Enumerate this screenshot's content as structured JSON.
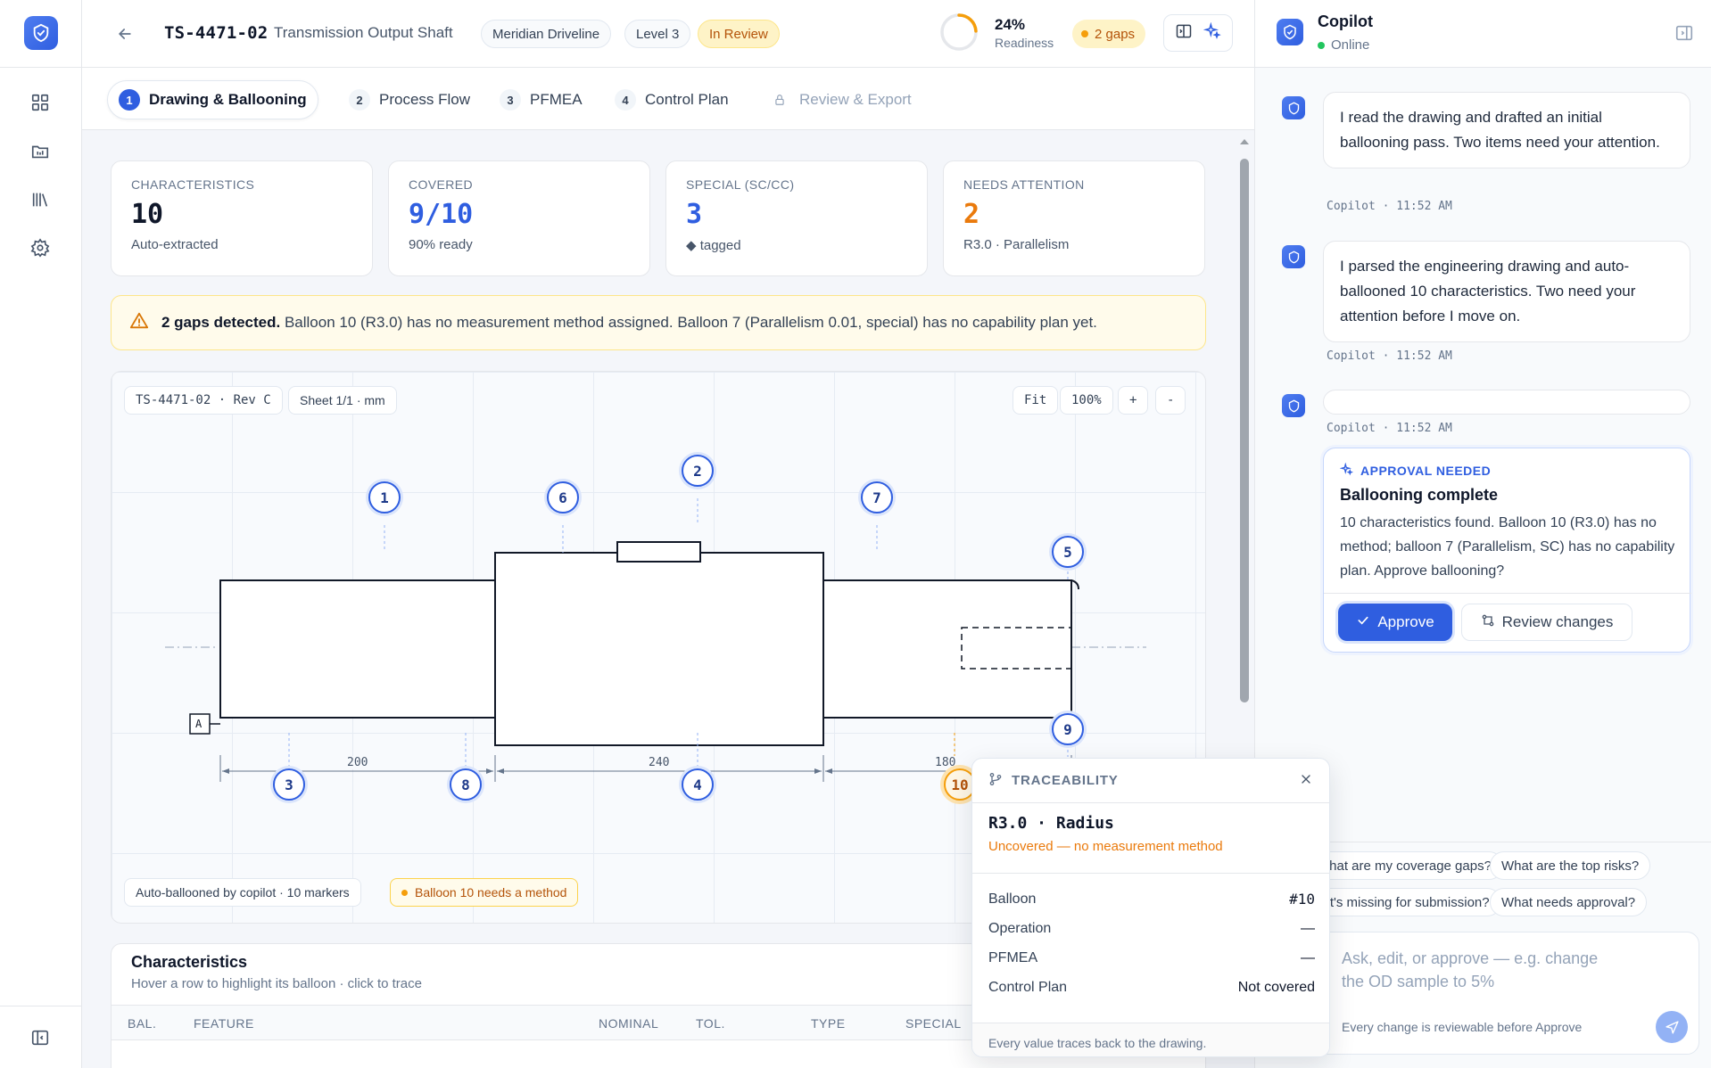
{
  "colors": {
    "accent": "#2f5ee0",
    "warning": "#f59e0b",
    "success": "#22c55e"
  },
  "rail": {
    "items": [
      "dashboard-icon",
      "folder-icon",
      "library-icon",
      "settings-icon"
    ]
  },
  "header": {
    "part_number": "TS-4471-02",
    "part_name": "Transmission Output Shaft",
    "customer": "Meridian Driveline",
    "level": "Level 3",
    "status": "In Review",
    "readiness_value": "24%",
    "readiness_fraction": 0.24,
    "readiness_label": "Readiness",
    "gaps": "2 gaps"
  },
  "steps": [
    {
      "num": "1",
      "label": "Drawing & Ballooning"
    },
    {
      "num": "2",
      "label": "Process Flow"
    },
    {
      "num": "3",
      "label": "PFMEA"
    },
    {
      "num": "4",
      "label": "Control Plan"
    },
    {
      "num": "",
      "label": "Review & Export"
    }
  ],
  "stats": [
    {
      "label": "CHARACTERISTICS",
      "value": "10",
      "sub": "Auto-extracted"
    },
    {
      "label": "COVERED",
      "value": "9/10",
      "sub": "90% ready"
    },
    {
      "label": "SPECIAL (SC/CC)",
      "value": "3",
      "sub": "◆ tagged"
    },
    {
      "label": "NEEDS ATTENTION",
      "value": "2",
      "sub": "R3.0 · Parallelism"
    }
  ],
  "alert": {
    "bold": "2 gaps detected.",
    "text": "Balloon 10 (R3.0) has no measurement method assigned. Balloon 7 (Parallelism 0.01, special) has no capability plan yet."
  },
  "drawing": {
    "doc": "TS-4471-02 · Rev C",
    "sheet": "Sheet 1/1 · mm",
    "fit": "Fit",
    "zoom": "100%",
    "zoom_in": "+",
    "zoom_out": "-",
    "datum": "A",
    "dims": [
      "200",
      "240",
      "180"
    ],
    "balloons": [
      "1",
      "2",
      "3",
      "4",
      "5",
      "6",
      "7",
      "8",
      "9",
      "10"
    ],
    "footer_chip": "Auto-ballooned by copilot · 10 markers",
    "warn_chip": "Balloon 10 needs a method"
  },
  "table": {
    "title": "Characteristics",
    "subtitle": "Hover a row to highlight its balloon · click to trace",
    "columns": [
      "BAL.",
      "FEATURE",
      "NOMINAL",
      "TOL.",
      "TYPE",
      "SPECIAL"
    ]
  },
  "trace": {
    "tag": "TRACEABILITY",
    "title": "R3.0 · Radius",
    "status": "Uncovered — no measurement method",
    "rows": [
      {
        "k": "Balloon",
        "v": "#10"
      },
      {
        "k": "Operation",
        "v": "—"
      },
      {
        "k": "PFMEA",
        "v": "—"
      },
      {
        "k": "Control Plan",
        "v": "Not covered"
      }
    ],
    "footer": "Every value traces back to the drawing."
  },
  "copilot": {
    "title": "Copilot",
    "status": "Online",
    "messages": [
      {
        "text": "I read the drawing and drafted an initial ballooning pass. Two items need your attention.",
        "meta": "Copilot · 11:52 AM"
      },
      {
        "text": "I parsed the engineering drawing and auto-ballooned 10 characteristics. Two need your attention before I move on.",
        "meta": "Copilot · 11:52 AM"
      },
      {
        "text": "",
        "meta": "Copilot · 11:52 AM"
      }
    ],
    "approval": {
      "tag": "APPROVAL NEEDED",
      "title": "Ballooning complete",
      "text": "10 characteristics found. Balloon 10 (R3.0) has no method; balloon 7 (Parallelism, SC) has no capability plan. Approve ballooning?",
      "approve": "Approve",
      "review": "Review changes"
    },
    "suggestions": [
      "What are my coverage gaps?",
      "What are the top risks?",
      "What's missing for submission?",
      "What needs approval?"
    ],
    "composer_placeholder": "Ask, edit, or approve — e.g. change the OD sample to 5%",
    "composer_note": "Every change is reviewable before Approve"
  }
}
